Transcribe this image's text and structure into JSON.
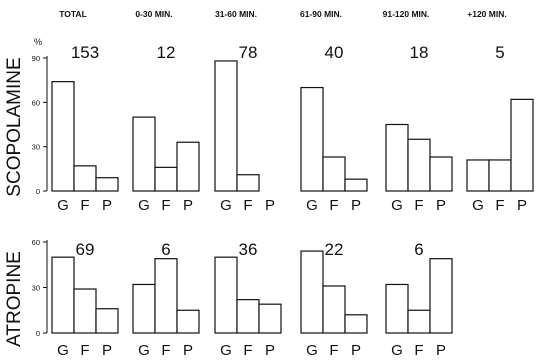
{
  "chart_data": {
    "type": "bar",
    "unit_label": "%",
    "columns": [
      "TOTAL",
      "0-30 MIN.",
      "31-60 MIN.",
      "61-90 MIN.",
      "91-120 MIN.",
      "+120 MIN."
    ],
    "categories": [
      "G",
      "F",
      "P"
    ],
    "rows": [
      {
        "drug": "SCOPOLAMINE",
        "yticks": [
          "90",
          "60",
          "30",
          "0"
        ],
        "ylim": [
          0,
          90
        ],
        "panels": [
          {
            "count": "153",
            "values": [
              74,
              17,
              9
            ]
          },
          {
            "count": "12",
            "values": [
              50,
              16,
              33
            ]
          },
          {
            "count": "78",
            "values": [
              88,
              11,
              0
            ]
          },
          {
            "count": "40",
            "values": [
              70,
              23,
              8
            ]
          },
          {
            "count": "18",
            "values": [
              45,
              35,
              23
            ]
          },
          {
            "count": "5",
            "values": [
              21,
              21,
              62
            ]
          }
        ]
      },
      {
        "drug": "ATROPINE",
        "yticks": [
          "60",
          "30",
          "0"
        ],
        "ylim": [
          0,
          60
        ],
        "panels": [
          {
            "count": "69",
            "values": [
              50,
              29,
              16
            ]
          },
          {
            "count": "6",
            "values": [
              32,
              49,
              15
            ]
          },
          {
            "count": "36",
            "values": [
              50,
              22,
              19
            ]
          },
          {
            "count": "22",
            "values": [
              54,
              31,
              12
            ]
          },
          {
            "count": "6",
            "values": [
              32,
              15,
              49
            ]
          }
        ]
      }
    ]
  }
}
